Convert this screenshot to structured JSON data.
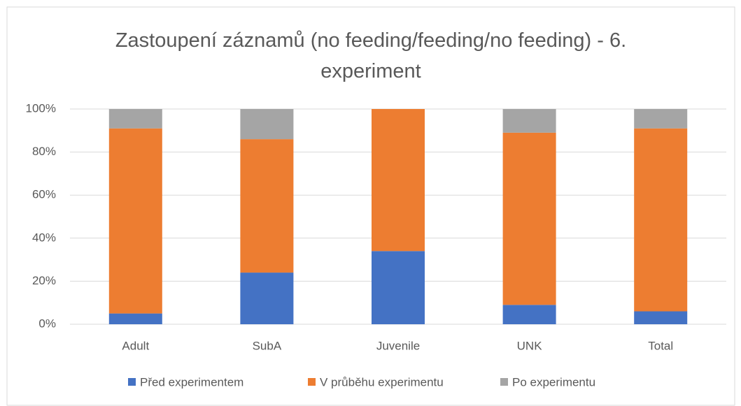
{
  "chart_data": {
    "type": "stacked_bar",
    "title": "Zastoupení záznamů (no feeding/feeding/no feeding) - 6. experiment",
    "categories": [
      "Adult",
      "SubA",
      "Juvenile",
      "UNK",
      "Total"
    ],
    "series": [
      {
        "name": "Před experimentem",
        "color": "#4472c4",
        "values": [
          5,
          24,
          34,
          9,
          6
        ]
      },
      {
        "name": "V průběhu experimentu",
        "color": "#ed7d31",
        "values": [
          86,
          62,
          66,
          80,
          85
        ]
      },
      {
        "name": "Po experimentu",
        "color": "#a5a5a5",
        "values": [
          9,
          14,
          0,
          11,
          9
        ]
      }
    ],
    "ylim": [
      0,
      100
    ],
    "yticks": [
      {
        "value": 0,
        "label": "0%"
      },
      {
        "value": 20,
        "label": "20%"
      },
      {
        "value": 40,
        "label": "40%"
      },
      {
        "value": 60,
        "label": "60%"
      },
      {
        "value": 80,
        "label": "80%"
      },
      {
        "value": 100,
        "label": "100%"
      }
    ],
    "grid": true,
    "legend": "bottom"
  }
}
